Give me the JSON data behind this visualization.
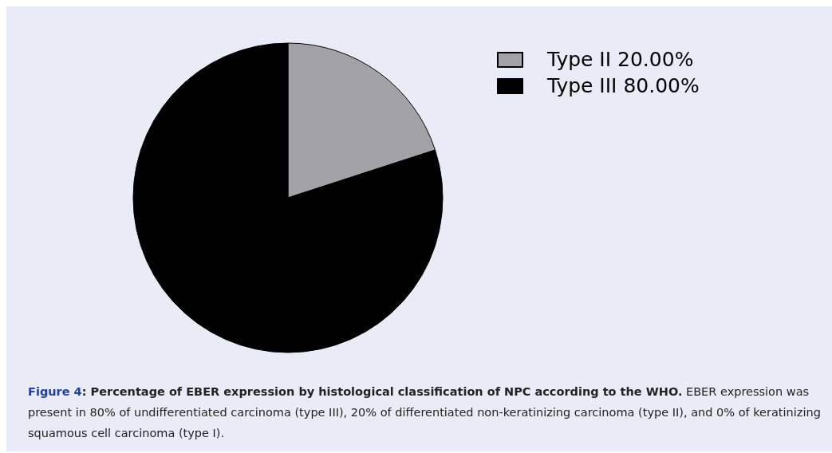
{
  "chart_data": {
    "type": "pie",
    "categories": [
      "Type II",
      "Type III"
    ],
    "values": [
      20,
      80
    ],
    "value_labels": [
      "20.00%",
      "80.00%"
    ],
    "colors": [
      "#a3a2a7",
      "#000000"
    ],
    "legend": "top right",
    "annotations": [
      "Figure 4",
      ": Percentage of EBER expression by histological classification of NPC according to the WHO.",
      "EBER expression was present in 80% of undifferentiated carcinoma (type III), 20% of differentiated non-keratinizing carcinoma (type II), and 0% of keratinizing squamous cell carcinoma (type I)."
    ]
  }
}
